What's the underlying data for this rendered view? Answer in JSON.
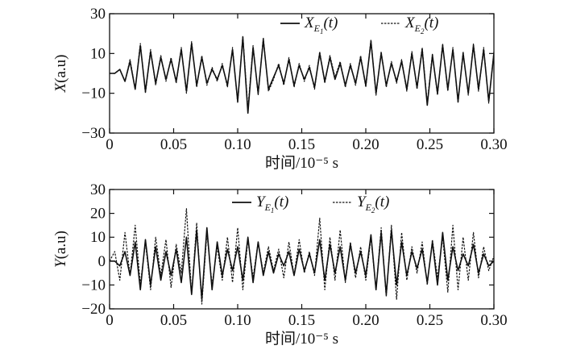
{
  "chart_data": [
    {
      "type": "line",
      "ylabel": "X(a.u)",
      "xlabel": "时间/10⁻⁵ s",
      "xlim": [
        0,
        0.3
      ],
      "ylim": [
        -30,
        30
      ],
      "xticks": [
        "0",
        "0.05",
        "0.10",
        "0.15",
        "0.20",
        "0.25",
        "0.30"
      ],
      "yticks": [
        "30",
        "10",
        "−10",
        "−30"
      ],
      "legend_position": "top-right",
      "series": [
        {
          "name": "X_{E1}(t)",
          "style": "solid",
          "color": "#111111",
          "x": [
            0,
            0.004,
            0.008,
            0.012,
            0.016,
            0.02,
            0.024,
            0.028,
            0.032,
            0.036,
            0.04,
            0.044,
            0.048,
            0.052,
            0.056,
            0.06,
            0.064,
            0.068,
            0.072,
            0.076,
            0.08,
            0.084,
            0.088,
            0.092,
            0.096,
            0.1,
            0.104,
            0.108,
            0.112,
            0.116,
            0.12,
            0.124,
            0.128,
            0.132,
            0.136,
            0.14,
            0.144,
            0.148,
            0.152,
            0.156,
            0.16,
            0.164,
            0.168,
            0.172,
            0.176,
            0.18,
            0.184,
            0.188,
            0.192,
            0.196,
            0.2,
            0.204,
            0.208,
            0.212,
            0.216,
            0.22,
            0.224,
            0.228,
            0.232,
            0.236,
            0.24,
            0.244,
            0.248,
            0.252,
            0.256,
            0.26,
            0.264,
            0.268,
            0.272,
            0.276,
            0.28,
            0.284,
            0.288,
            0.292,
            0.296,
            0.3
          ],
          "y": [
            0,
            0,
            2,
            -4,
            6,
            -8,
            14,
            -9,
            11,
            -5,
            8,
            -3,
            7,
            -4,
            12,
            -9,
            15,
            -6,
            8,
            -5,
            2,
            -3,
            4,
            -6,
            12,
            -14,
            18,
            -20,
            13,
            -10,
            17,
            -8,
            -2,
            4,
            -5,
            7,
            -6,
            4,
            -3,
            3,
            -7,
            10,
            -4,
            8,
            -3,
            5,
            -6,
            4,
            -5,
            8,
            -6,
            16,
            -10,
            10,
            -6,
            5,
            -4,
            6,
            -8,
            10,
            -7,
            12,
            -16,
            9,
            -10,
            14,
            -8,
            12,
            -14,
            10,
            -10,
            14,
            -8,
            12,
            -14,
            10
          ]
        },
        {
          "name": "X_{E2}(t)",
          "style": "dashed",
          "color": "#111111",
          "x": [
            0,
            0.004,
            0.008,
            0.012,
            0.016,
            0.02,
            0.024,
            0.028,
            0.032,
            0.036,
            0.04,
            0.044,
            0.048,
            0.052,
            0.056,
            0.06,
            0.064,
            0.068,
            0.072,
            0.076,
            0.08,
            0.084,
            0.088,
            0.092,
            0.096,
            0.1,
            0.104,
            0.108,
            0.112,
            0.116,
            0.12,
            0.124,
            0.128,
            0.132,
            0.136,
            0.14,
            0.144,
            0.148,
            0.152,
            0.156,
            0.16,
            0.164,
            0.168,
            0.172,
            0.176,
            0.18,
            0.184,
            0.188,
            0.192,
            0.196,
            0.2,
            0.204,
            0.208,
            0.212,
            0.216,
            0.22,
            0.224,
            0.228,
            0.232,
            0.236,
            0.24,
            0.244,
            0.248,
            0.252,
            0.256,
            0.26,
            0.264,
            0.268,
            0.272,
            0.276,
            0.28,
            0.284,
            0.288,
            0.292,
            0.296,
            0.3
          ],
          "y": [
            0,
            0,
            2,
            -4,
            7,
            -8,
            15,
            -10,
            12,
            -6,
            9,
            -4,
            8,
            -5,
            13,
            -10,
            16,
            -7,
            9,
            -6,
            3,
            -4,
            5,
            -7,
            13,
            -15,
            19,
            -18,
            14,
            -11,
            18,
            -9,
            -3,
            5,
            -6,
            8,
            -7,
            5,
            -4,
            4,
            -8,
            11,
            -5,
            9,
            -2,
            6,
            -7,
            5,
            -6,
            9,
            -7,
            17,
            -11,
            11,
            -7,
            6,
            -5,
            7,
            -9,
            11,
            -8,
            13,
            -15,
            10,
            -11,
            15,
            -9,
            13,
            -15,
            11,
            -11,
            15,
            -9,
            13,
            -15,
            11
          ]
        }
      ]
    },
    {
      "type": "line",
      "ylabel": "Y(a.u)",
      "xlabel": "时间/10⁻⁵ s",
      "xlim": [
        0,
        0.3
      ],
      "ylim": [
        -20,
        30
      ],
      "xticks": [
        "0",
        "0.05",
        "0.10",
        "0.15",
        "0.20",
        "0.25",
        "0.30"
      ],
      "yticks": [
        "30",
        "20",
        "10",
        "0",
        "−10",
        "−20"
      ],
      "legend_position": "top-center",
      "series": [
        {
          "name": "Y_{E1}(t)",
          "style": "solid",
          "color": "#111111",
          "x": [
            0,
            0.004,
            0.008,
            0.012,
            0.016,
            0.02,
            0.024,
            0.028,
            0.032,
            0.036,
            0.04,
            0.044,
            0.048,
            0.052,
            0.056,
            0.06,
            0.064,
            0.068,
            0.072,
            0.076,
            0.08,
            0.084,
            0.088,
            0.092,
            0.096,
            0.1,
            0.104,
            0.108,
            0.112,
            0.116,
            0.12,
            0.124,
            0.128,
            0.132,
            0.136,
            0.14,
            0.144,
            0.148,
            0.152,
            0.156,
            0.16,
            0.164,
            0.168,
            0.172,
            0.176,
            0.18,
            0.184,
            0.188,
            0.192,
            0.196,
            0.2,
            0.204,
            0.208,
            0.212,
            0.216,
            0.22,
            0.224,
            0.228,
            0.232,
            0.236,
            0.24,
            0.244,
            0.248,
            0.252,
            0.256,
            0.26,
            0.264,
            0.268,
            0.272,
            0.276,
            0.28,
            0.284,
            0.288,
            0.292,
            0.296,
            0.3
          ],
          "y": [
            0,
            0,
            -2,
            4,
            -6,
            8,
            -12,
            9,
            -10,
            6,
            -8,
            4,
            -6,
            5,
            -9,
            10,
            -14,
            13,
            -16,
            14,
            -12,
            8,
            -6,
            5,
            -4,
            6,
            -8,
            10,
            -9,
            8,
            -6,
            4,
            -5,
            3,
            -2,
            4,
            -6,
            5,
            -4,
            3,
            -5,
            9,
            -8,
            7,
            -5,
            6,
            -8,
            7,
            -5,
            4,
            -6,
            11,
            -12,
            12,
            -14,
            13,
            -10,
            8,
            -6,
            4,
            -3,
            5,
            -9,
            8,
            -10,
            12,
            -8,
            6,
            -4,
            3,
            -2,
            7,
            -5,
            3,
            -2,
            0
          ]
        },
        {
          "name": "Y_{E2}(t)",
          "style": "dashed",
          "color": "#111111",
          "x": [
            0,
            0.004,
            0.008,
            0.012,
            0.016,
            0.02,
            0.024,
            0.028,
            0.032,
            0.036,
            0.04,
            0.044,
            0.048,
            0.052,
            0.056,
            0.06,
            0.064,
            0.068,
            0.072,
            0.076,
            0.08,
            0.084,
            0.088,
            0.092,
            0.096,
            0.1,
            0.104,
            0.108,
            0.112,
            0.116,
            0.12,
            0.124,
            0.128,
            0.132,
            0.136,
            0.14,
            0.144,
            0.148,
            0.152,
            0.156,
            0.16,
            0.164,
            0.168,
            0.172,
            0.176,
            0.18,
            0.184,
            0.188,
            0.192,
            0.196,
            0.2,
            0.204,
            0.208,
            0.212,
            0.216,
            0.22,
            0.224,
            0.228,
            0.232,
            0.236,
            0.24,
            0.244,
            0.248,
            0.252,
            0.256,
            0.26,
            0.264,
            0.268,
            0.272,
            0.276,
            0.28,
            0.284,
            0.288,
            0.292,
            0.296,
            0.3
          ],
          "y": [
            0,
            4,
            -8,
            12,
            -6,
            15,
            -10,
            8,
            -12,
            10,
            -6,
            9,
            -11,
            7,
            -5,
            22,
            -14,
            16,
            -18,
            12,
            -10,
            6,
            -8,
            10,
            -9,
            14,
            -12,
            9,
            -7,
            8,
            -5,
            6,
            -4,
            5,
            -7,
            8,
            -6,
            9,
            -5,
            4,
            -6,
            18,
            -12,
            10,
            -8,
            13,
            -9,
            8,
            -7,
            6,
            -8,
            10,
            -12,
            14,
            -15,
            15,
            -16,
            12,
            -8,
            6,
            -5,
            8,
            -10,
            9,
            -7,
            10,
            -13,
            15,
            -12,
            10,
            -8,
            12,
            -7,
            6,
            -4,
            2
          ]
        }
      ]
    }
  ]
}
